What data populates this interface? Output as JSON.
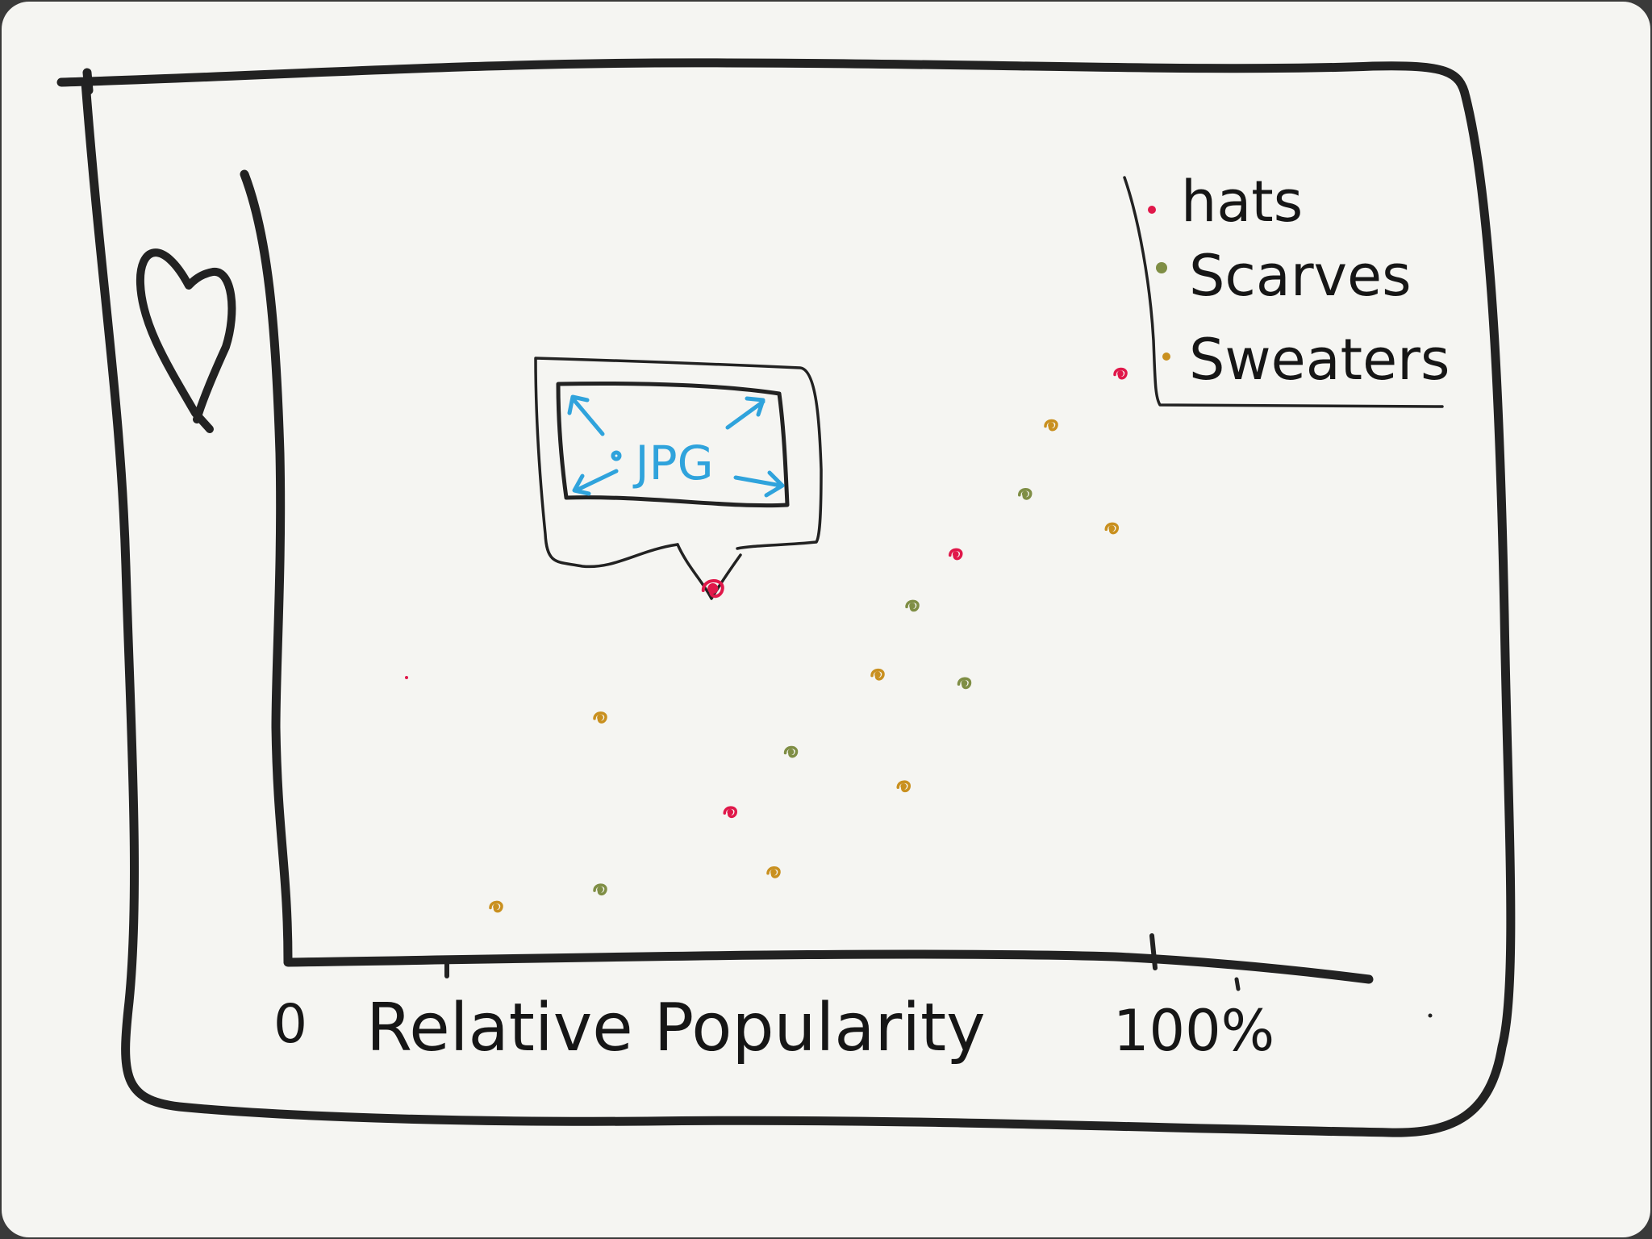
{
  "canvas": {
    "background": "#f5f5f2",
    "ink_color": "#222222"
  },
  "y_axis_icon": "heart-icon",
  "image_placeholder": {
    "label": "JPG",
    "icon": "expand-arrows-icon",
    "color": "#2fa3dc"
  },
  "legend": {
    "items": [
      {
        "label": "hats",
        "color": "#e0184a"
      },
      {
        "label": "Scarves",
        "color": "#7f8e45"
      },
      {
        "label": "Sweaters",
        "color": "#c9901f"
      }
    ]
  },
  "x_axis": {
    "min_label": "0",
    "title": "Relative Popularity",
    "max_label": "100%"
  },
  "chart_data": {
    "type": "scatter",
    "xlabel": "Relative Popularity",
    "xlim": [
      0,
      100
    ],
    "x_ticks": [
      "0",
      "100%"
    ],
    "ylim": [
      0,
      100
    ],
    "series": [
      {
        "name": "hats",
        "color": "#e0184a",
        "points": [
          {
            "x": 49,
            "y": 43,
            "highlighted": true
          },
          {
            "x": 51,
            "y": 17
          },
          {
            "x": 77,
            "y": 47
          },
          {
            "x": 96,
            "y": 68
          }
        ]
      },
      {
        "name": "Scarves",
        "color": "#7f8e45",
        "points": [
          {
            "x": 36,
            "y": 8
          },
          {
            "x": 58,
            "y": 24
          },
          {
            "x": 72,
            "y": 41
          },
          {
            "x": 78,
            "y": 32
          },
          {
            "x": 85,
            "y": 54
          }
        ]
      },
      {
        "name": "Sweaters",
        "color": "#c9901f",
        "points": [
          {
            "x": 24,
            "y": 6
          },
          {
            "x": 36,
            "y": 28
          },
          {
            "x": 56,
            "y": 10
          },
          {
            "x": 68,
            "y": 33
          },
          {
            "x": 71,
            "y": 20
          },
          {
            "x": 88,
            "y": 62
          },
          {
            "x": 95,
            "y": 50
          }
        ]
      }
    ]
  }
}
